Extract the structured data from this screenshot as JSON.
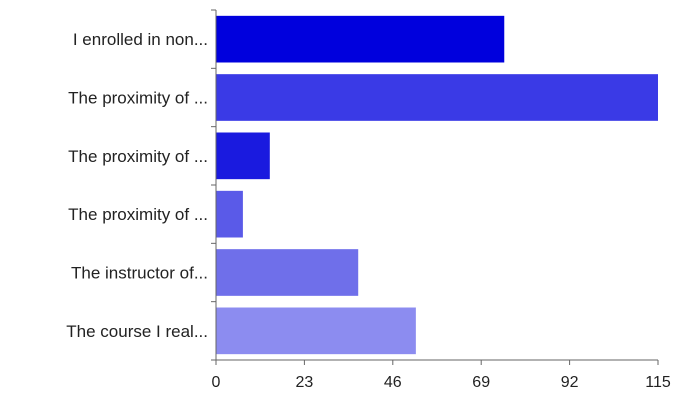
{
  "chart_data": {
    "type": "bar",
    "orientation": "horizontal",
    "categories": [
      "I enrolled in non...",
      "The proximity of ...",
      "The proximity of ...",
      "The proximity of ...",
      "The instructor of...",
      "The course I real..."
    ],
    "values": [
      75,
      115,
      14,
      7,
      37,
      52
    ],
    "bar_colors": [
      "#0000dd",
      "#3a3ae6",
      "#1a1adf",
      "#5a5ae8",
      "#6f6fea",
      "#8c8cf0"
    ],
    "xticks": [
      "0",
      "23",
      "46",
      "69",
      "92",
      "115"
    ],
    "xlim": [
      0,
      115
    ],
    "title": "",
    "xlabel": "",
    "ylabel": "",
    "grid": false,
    "legend": false
  }
}
